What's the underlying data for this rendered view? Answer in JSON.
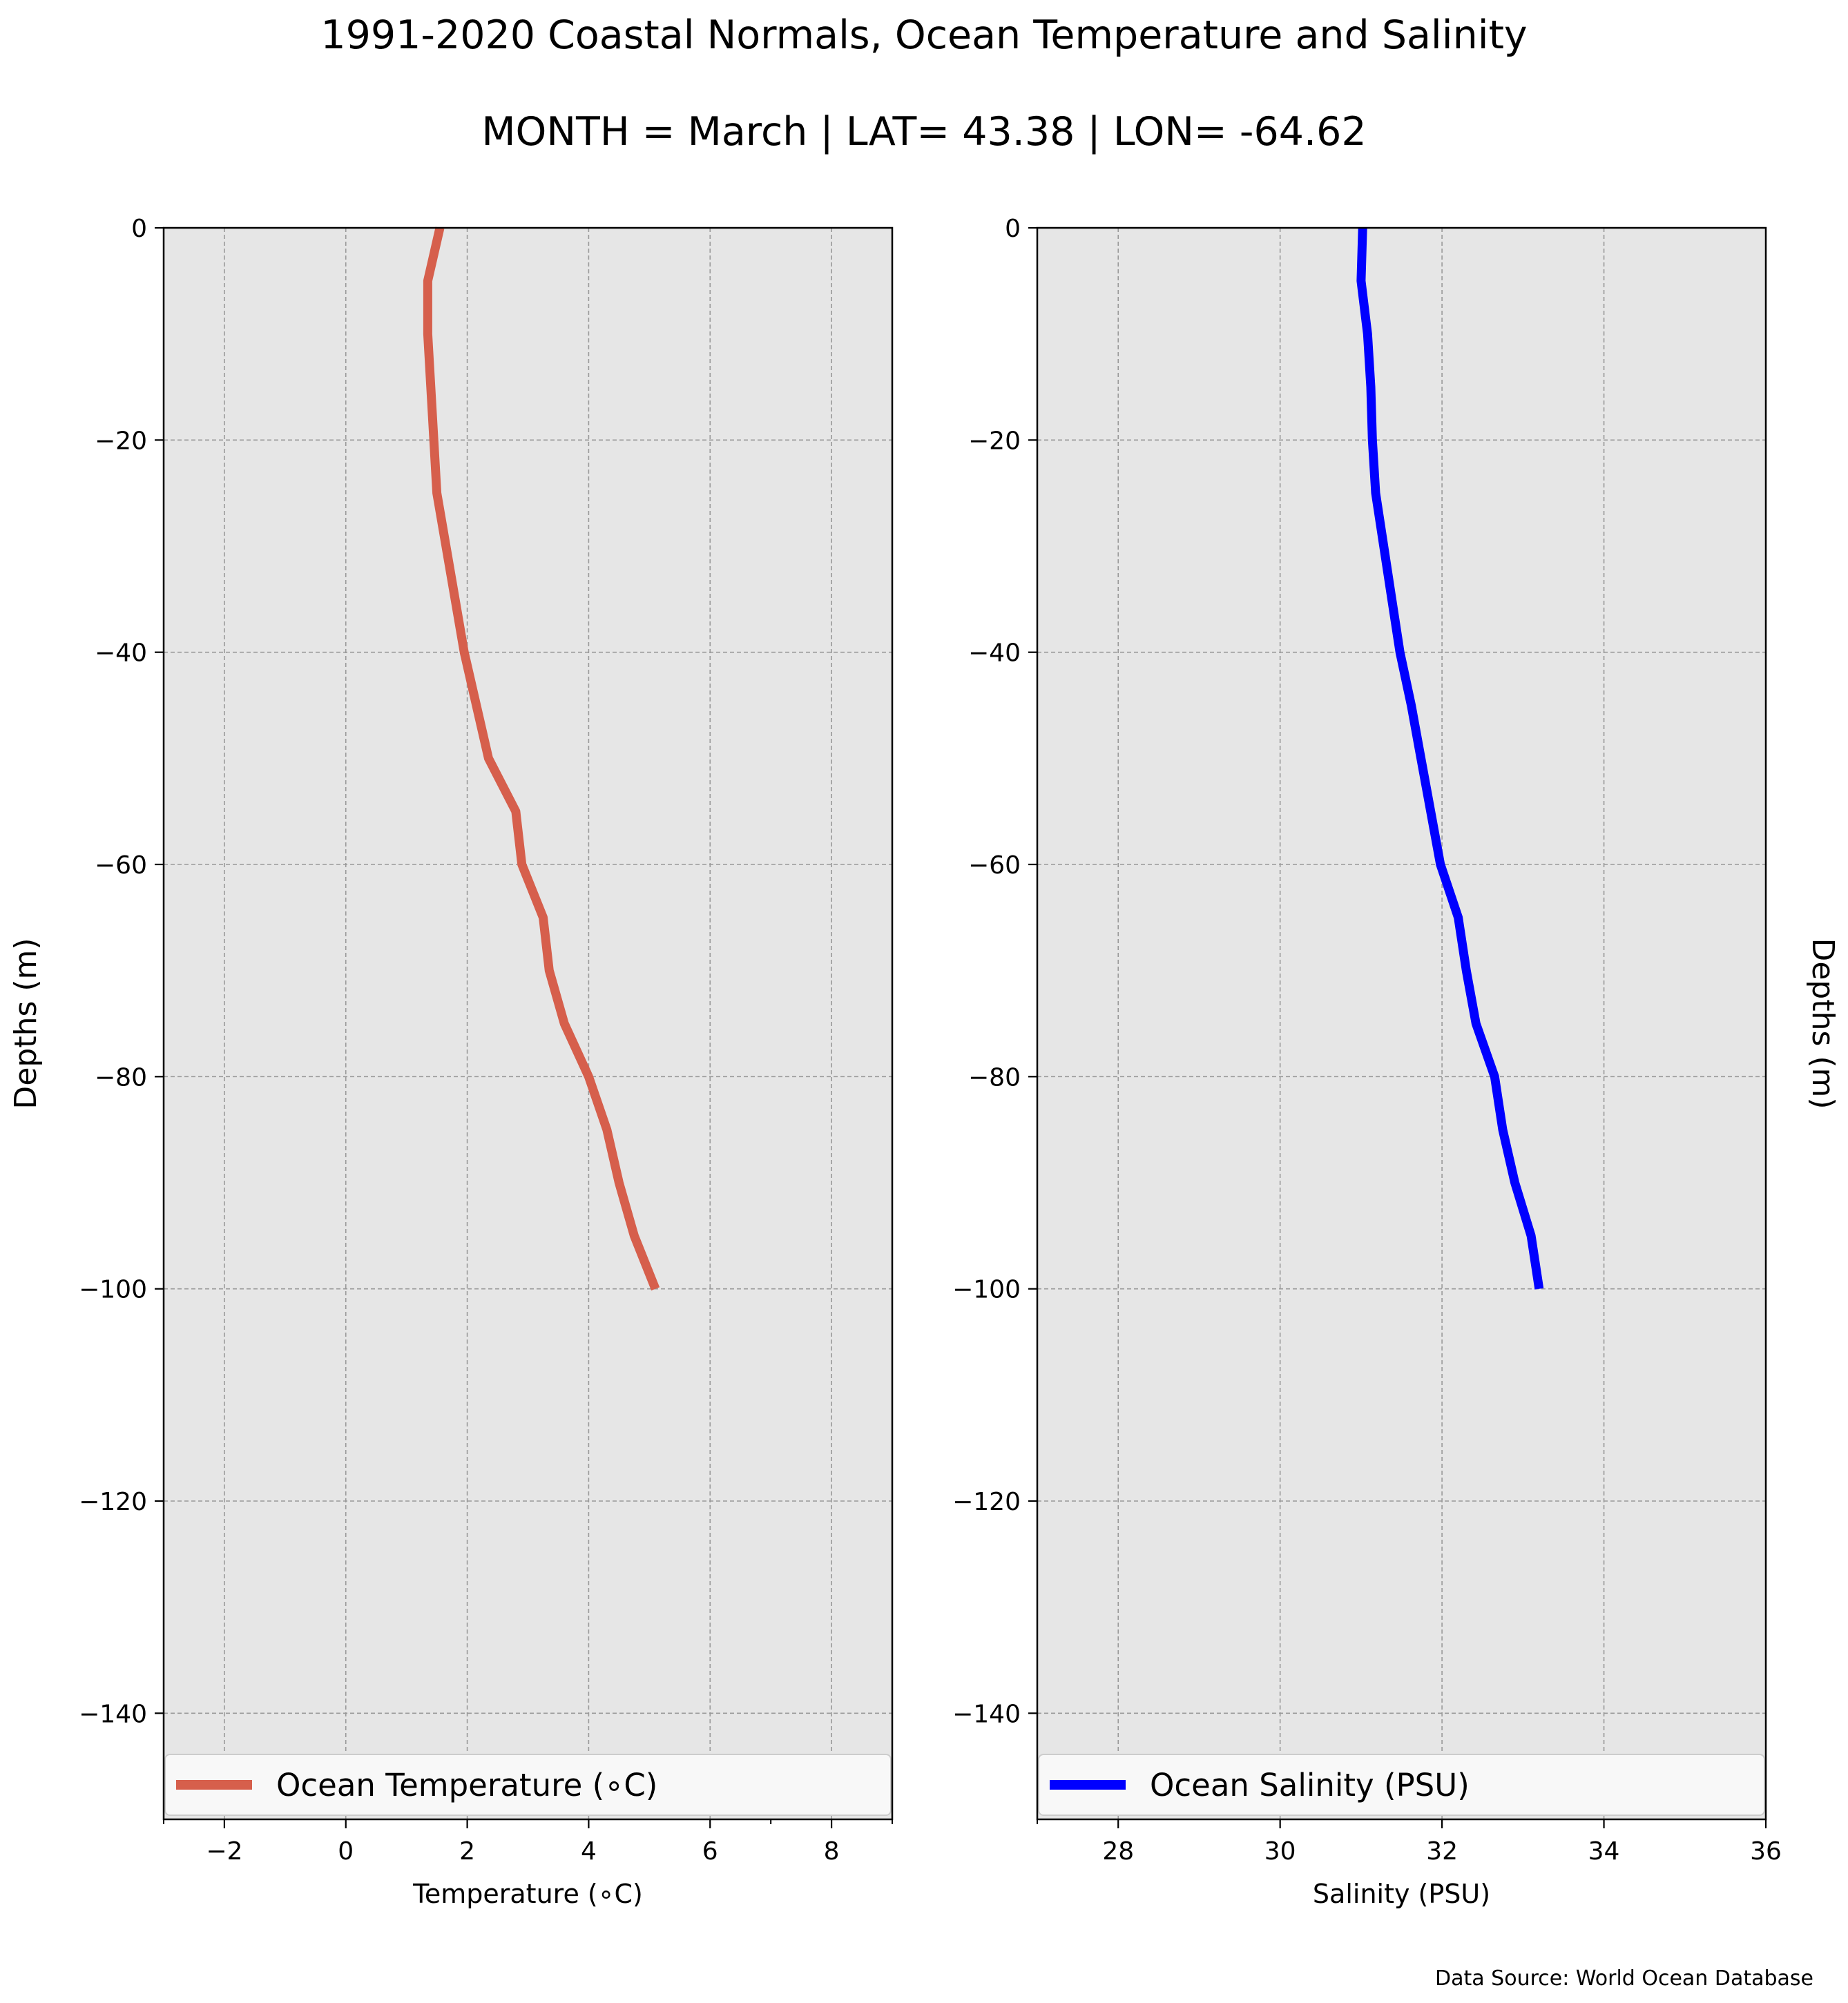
{
  "title": "1991-2020 Coastal Normals, Ocean Temperature and Salinity",
  "subtitle": "MONTH = March | LAT= 43.38 | LON= -64.62",
  "source_note": "Data Source: World Ocean Database",
  "colors": {
    "axes_background": "#e6e6e6",
    "grid": "#999999",
    "temperature_line": "#d65f4c",
    "salinity_line": "#0000ff",
    "legend_background": "#f8f8f8"
  },
  "chart_data": [
    {
      "type": "line",
      "xlabel": "Temperature (∘C)",
      "ylabel": "Depths (m)",
      "xlim": [
        -3,
        9
      ],
      "ylim": [
        -150,
        0
      ],
      "xticks": [
        -2,
        0,
        2,
        4,
        6,
        8
      ],
      "xtick_labels": [
        "−2",
        "0",
        "2",
        "4",
        "6",
        "8"
      ],
      "xticks_minor": [
        -3,
        7,
        9
      ],
      "yticks": [
        0,
        -20,
        -40,
        -60,
        -80,
        -100,
        -120,
        -140
      ],
      "ytick_labels": [
        "0",
        "−20",
        "−40",
        "−60",
        "−80",
        "−100",
        "−120",
        "−140"
      ],
      "grid": true,
      "legend_position": "bottom",
      "series": [
        {
          "name": "Ocean Temperature (∘C)",
          "color": "#d65f4c",
          "x": [
            1.55,
            1.35,
            1.35,
            1.4,
            1.45,
            1.5,
            1.65,
            1.8,
            1.95,
            2.15,
            2.35,
            2.8,
            2.9,
            3.25,
            3.35,
            3.6,
            4.0,
            4.3,
            4.5,
            4.75,
            5.1
          ],
          "y": [
            0,
            -5,
            -10,
            -15,
            -20,
            -25,
            -30,
            -35,
            -40,
            -45,
            -50,
            -55,
            -60,
            -65,
            -70,
            -75,
            -80,
            -85,
            -90,
            -95,
            -100
          ]
        }
      ]
    },
    {
      "type": "line",
      "xlabel": "Salinity (PSU)",
      "ylabel": "Depths (m)",
      "xlim": [
        27,
        36
      ],
      "ylim": [
        -150,
        0
      ],
      "xticks": [
        28,
        30,
        32,
        34,
        36
      ],
      "xtick_labels": [
        "28",
        "30",
        "32",
        "34",
        "36"
      ],
      "xticks_minor": [
        27
      ],
      "yticks": [
        0,
        -20,
        -40,
        -60,
        -80,
        -100,
        -120,
        -140
      ],
      "ytick_labels": [
        "0",
        "−20",
        "−40",
        "−60",
        "−80",
        "−100",
        "−120",
        "−140"
      ],
      "grid": true,
      "legend_position": "bottom",
      "series": [
        {
          "name": "Ocean Salinity (PSU)",
          "color": "#0000ff",
          "x": [
            31.02,
            31.0,
            31.08,
            31.12,
            31.14,
            31.18,
            31.28,
            31.38,
            31.48,
            31.62,
            31.74,
            31.86,
            31.98,
            32.2,
            32.3,
            32.42,
            32.65,
            32.75,
            32.9,
            33.1,
            33.2
          ],
          "y": [
            0,
            -5,
            -10,
            -15,
            -20,
            -25,
            -30,
            -35,
            -40,
            -45,
            -50,
            -55,
            -60,
            -65,
            -70,
            -75,
            -80,
            -85,
            -90,
            -95,
            -100
          ]
        }
      ]
    }
  ]
}
